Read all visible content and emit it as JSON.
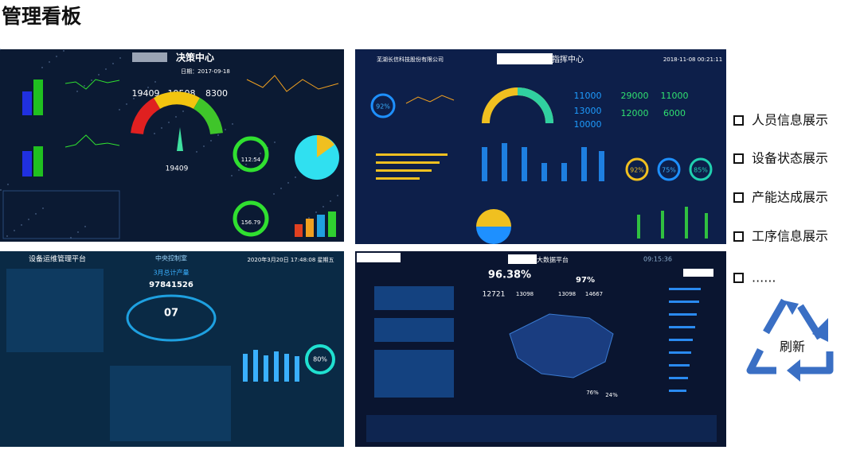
{
  "header": {
    "title": "管理看板"
  },
  "panels": [
    {
      "title": "决策中心",
      "date": "日期：2017-09-18",
      "kpis": [
        "19409",
        "19508",
        "8300"
      ],
      "gauge": "19409",
      "donuts": [
        "112.54",
        "156.79"
      ]
    },
    {
      "company": "芜湖长信科技股份有限公司",
      "title": "指挥中心",
      "date": "2018-11-08 00:21:11",
      "rate": "92%",
      "mid": [
        "11000",
        "13000",
        "10000"
      ],
      "right": [
        "29000",
        "11000",
        "12000",
        "6000"
      ],
      "circles": [
        "92%",
        "75%",
        "85%"
      ]
    },
    {
      "title": "设备运维管理平台",
      "room": "中央控制室",
      "date": "2020年3月20日 17:48:08 星期五",
      "label": "3月总计产量",
      "total": "97841526",
      "center": "07",
      "ring": "80%"
    },
    {
      "title": "大数据平台",
      "time": "09:15:36",
      "big": "96.38%",
      "small": "97%",
      "nums": [
        "12721",
        "13098",
        "13098",
        "14667"
      ],
      "split": [
        "76%",
        "24%"
      ]
    }
  ],
  "list": {
    "items": [
      "人员信息展示",
      "设备状态展示",
      "产能达成展示",
      "工序信息展示",
      "......"
    ],
    "refresh": "刷新"
  }
}
